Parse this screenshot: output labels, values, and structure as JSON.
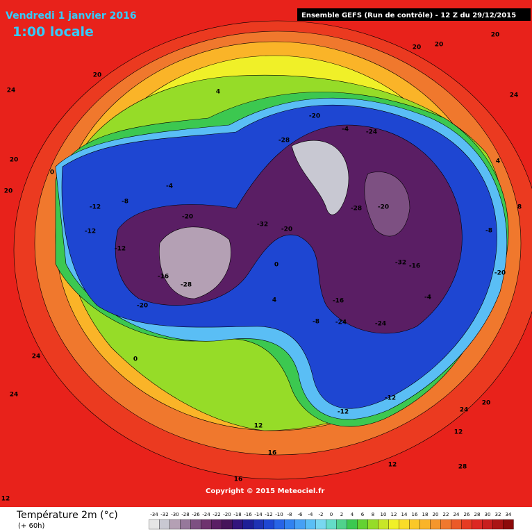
{
  "header": {
    "title": "Vendredi 1 janvier 2016",
    "subtitle": "1:00 locale",
    "run": "Ensemble GEFS  (Run de contrôle)  -  12 Z du 29/12/2015"
  },
  "map": {
    "labels": [
      20,
      24,
      20,
      20,
      20,
      24,
      20,
      20,
      -12,
      -12,
      -12,
      -8,
      -20,
      -32,
      -20,
      -28,
      -20,
      -4,
      -24,
      -28,
      -20,
      -16,
      -32,
      -24,
      -24,
      -16,
      -8,
      0,
      4,
      0,
      12,
      16,
      12,
      20,
      24,
      28,
      24,
      24,
      12,
      16,
      4,
      -4,
      -16,
      -28,
      -20,
      -12,
      -12,
      -4,
      -8,
      -20,
      4,
      8,
      0,
      12
    ]
  },
  "copyright": "Copyright © 2015 Meteociel.fr",
  "legend": {
    "title": "Température 2m (°c)",
    "lead": "(+ 60h)",
    "ticks": [
      -34,
      -32,
      -30,
      -28,
      -26,
      -24,
      -22,
      -20,
      -18,
      -16,
      -14,
      -12,
      -10,
      -8,
      -6,
      -4,
      -2,
      0,
      2,
      4,
      6,
      8,
      10,
      12,
      14,
      16,
      18,
      20,
      22,
      24,
      26,
      28,
      30,
      32,
      34
    ],
    "colors": [
      "#e6e6e6",
      "#c8c8d2",
      "#b4a0b4",
      "#96789b",
      "#7d5082",
      "#6e326e",
      "#5a1e64",
      "#46145a",
      "#32147d",
      "#1e1e96",
      "#1e32b4",
      "#1e46d2",
      "#2864e6",
      "#3282f0",
      "#46a0f5",
      "#5abef5",
      "#78d7f0",
      "#64dcc8",
      "#50d28c",
      "#3cc850",
      "#64d232",
      "#96dc28",
      "#c8e628",
      "#f0f028",
      "#fadc28",
      "#fac828",
      "#fab428",
      "#f5962d",
      "#f0782d",
      "#eb5a28",
      "#e63c23",
      "#dc2823",
      "#c81e1e",
      "#aa1414",
      "#8c0a0a"
    ]
  }
}
